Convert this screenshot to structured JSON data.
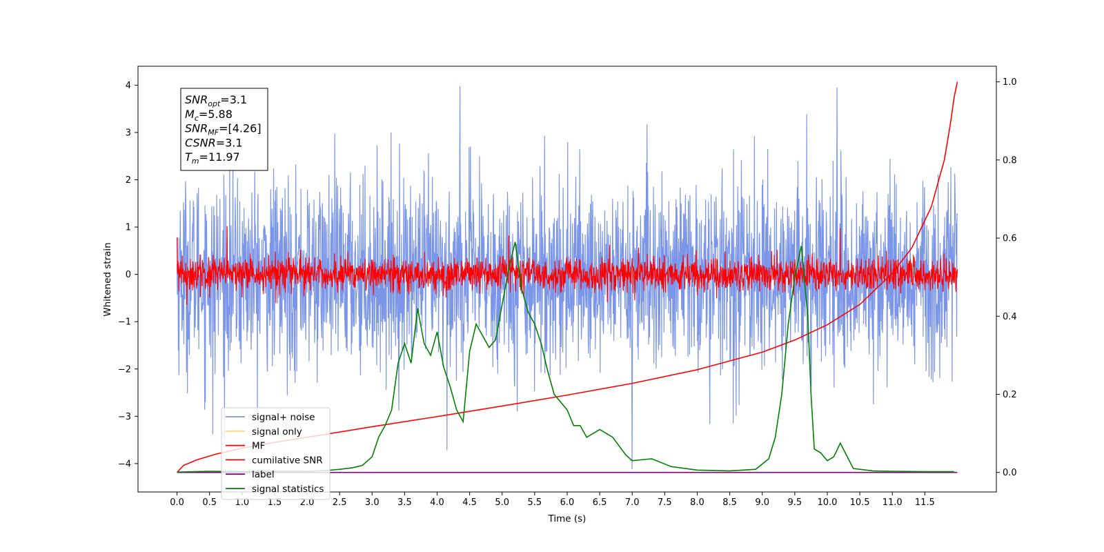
{
  "chart_data": {
    "type": "line",
    "xlabel": "Time (s)",
    "ylabel": "Whitened strain",
    "xlim": [
      -0.6,
      12.6
    ],
    "ylim": [
      -4.6,
      4.4
    ],
    "y2lim": [
      -0.05,
      1.04
    ],
    "x_ticks": [
      0.0,
      0.5,
      1.0,
      1.5,
      2.0,
      2.5,
      3.0,
      3.5,
      4.0,
      4.5,
      5.0,
      5.5,
      6.0,
      6.5,
      7.0,
      7.5,
      8.0,
      8.5,
      9.0,
      9.5,
      10.0,
      10.5,
      11.0,
      11.5
    ],
    "x_tick_labels": [
      "0.0",
      "0.5",
      "1.0",
      "1.5",
      "2.0",
      "2.5",
      "3.0",
      "3.5",
      "4.0",
      "4.5",
      "5.0",
      "5.5",
      "6.0",
      "6.5",
      "7.0",
      "7.5",
      "8.0",
      "8.5",
      "9.0",
      "9.5",
      "10.0",
      "10.5",
      "11.0",
      "11.5"
    ],
    "y_ticks": [
      -4,
      -3,
      -2,
      -1,
      0,
      1,
      2,
      3,
      4
    ],
    "y2_ticks": [
      0.0,
      0.2,
      0.4,
      0.6,
      0.8,
      1.0
    ],
    "y2_tick_labels": [
      "0.0",
      "0.2",
      "0.4",
      "0.6",
      "0.8",
      "1.0"
    ],
    "legend_position": "lower-left",
    "info_box": [
      {
        "base": "SNR",
        "sub": "opt",
        "value": "=3.1"
      },
      {
        "base": "M",
        "sub": "c",
        "value": "=5.88"
      },
      {
        "base": "SNR",
        "sub": "MF",
        "value": "=[4.26]"
      },
      {
        "base": "CSNR",
        "sub": "",
        "value": "=3.1"
      },
      {
        "base": "T",
        "sub": "m",
        "value": "=11.97"
      }
    ],
    "series": [
      {
        "name": "signal+ noise",
        "color": "#7b96e8",
        "axis": "left",
        "kind": "noise",
        "t_range": [
          0,
          12
        ],
        "sigma": 1.0,
        "extremes": [
          [
            4.35,
            3.98
          ],
          [
            10.15,
            3.95
          ],
          [
            0.55,
            -3.38
          ],
          [
            7.0,
            -4.12
          ],
          [
            4.15,
            -3.72
          ]
        ]
      },
      {
        "name": "signal only",
        "color": "#ffd280",
        "axis": "left",
        "kind": "hidden"
      },
      {
        "name": "MF",
        "color": "#ff0000",
        "axis": "left",
        "kind": "noise",
        "t_range": [
          0,
          12
        ],
        "sigma": 0.18,
        "extremes": [
          [
            0.0,
            0.78
          ],
          [
            0.77,
            1.02
          ],
          [
            10.2,
            0.98
          ],
          [
            5.1,
            0.82
          ]
        ]
      },
      {
        "name": "cumilative SNR",
        "color": "#ff0000",
        "axis": "right",
        "x": [
          0.0,
          0.1,
          0.3,
          0.6,
          1.0,
          1.5,
          2.0,
          3.0,
          4.0,
          5.0,
          6.0,
          7.0,
          8.0,
          9.0,
          9.5,
          10.0,
          10.5,
          11.0,
          11.3,
          11.6,
          11.8,
          11.9,
          11.95,
          12.0
        ],
        "values": [
          0.0,
          0.018,
          0.032,
          0.047,
          0.062,
          0.077,
          0.09,
          0.117,
          0.143,
          0.17,
          0.198,
          0.228,
          0.263,
          0.308,
          0.339,
          0.378,
          0.43,
          0.51,
          0.575,
          0.68,
          0.8,
          0.9,
          0.96,
          1.0
        ]
      },
      {
        "name": "label",
        "color": "#800080",
        "axis": "right",
        "x": [
          0.0,
          12.0
        ],
        "values": [
          0.0,
          0.0
        ]
      },
      {
        "name": "signal statistics",
        "color": "#008000",
        "axis": "right",
        "x": [
          0.0,
          0.5,
          1.0,
          1.5,
          2.0,
          2.3,
          2.5,
          2.7,
          2.85,
          3.0,
          3.1,
          3.2,
          3.3,
          3.4,
          3.5,
          3.6,
          3.7,
          3.8,
          3.9,
          4.0,
          4.1,
          4.2,
          4.3,
          4.4,
          4.5,
          4.6,
          4.7,
          4.8,
          4.9,
          5.0,
          5.1,
          5.2,
          5.3,
          5.4,
          5.5,
          5.6,
          5.7,
          5.8,
          5.9,
          6.0,
          6.1,
          6.2,
          6.3,
          6.5,
          6.7,
          6.9,
          7.0,
          7.3,
          7.6,
          8.0,
          8.5,
          8.9,
          9.1,
          9.2,
          9.3,
          9.4,
          9.5,
          9.6,
          9.7,
          9.75,
          9.8,
          9.9,
          10.0,
          10.1,
          10.2,
          10.4,
          10.7,
          11.0,
          11.5,
          11.95
        ],
        "values": [
          0.001,
          0.003,
          0.002,
          0.003,
          0.003,
          0.005,
          0.008,
          0.012,
          0.018,
          0.04,
          0.09,
          0.12,
          0.16,
          0.28,
          0.33,
          0.28,
          0.42,
          0.33,
          0.3,
          0.36,
          0.27,
          0.22,
          0.16,
          0.13,
          0.31,
          0.38,
          0.35,
          0.32,
          0.34,
          0.43,
          0.52,
          0.59,
          0.47,
          0.41,
          0.38,
          0.33,
          0.26,
          0.2,
          0.18,
          0.16,
          0.12,
          0.12,
          0.09,
          0.11,
          0.09,
          0.045,
          0.03,
          0.035,
          0.015,
          0.006,
          0.004,
          0.008,
          0.035,
          0.09,
          0.2,
          0.38,
          0.5,
          0.58,
          0.4,
          0.2,
          0.06,
          0.05,
          0.03,
          0.04,
          0.075,
          0.01,
          0.004,
          0.003,
          0.002,
          0.002
        ]
      }
    ]
  }
}
